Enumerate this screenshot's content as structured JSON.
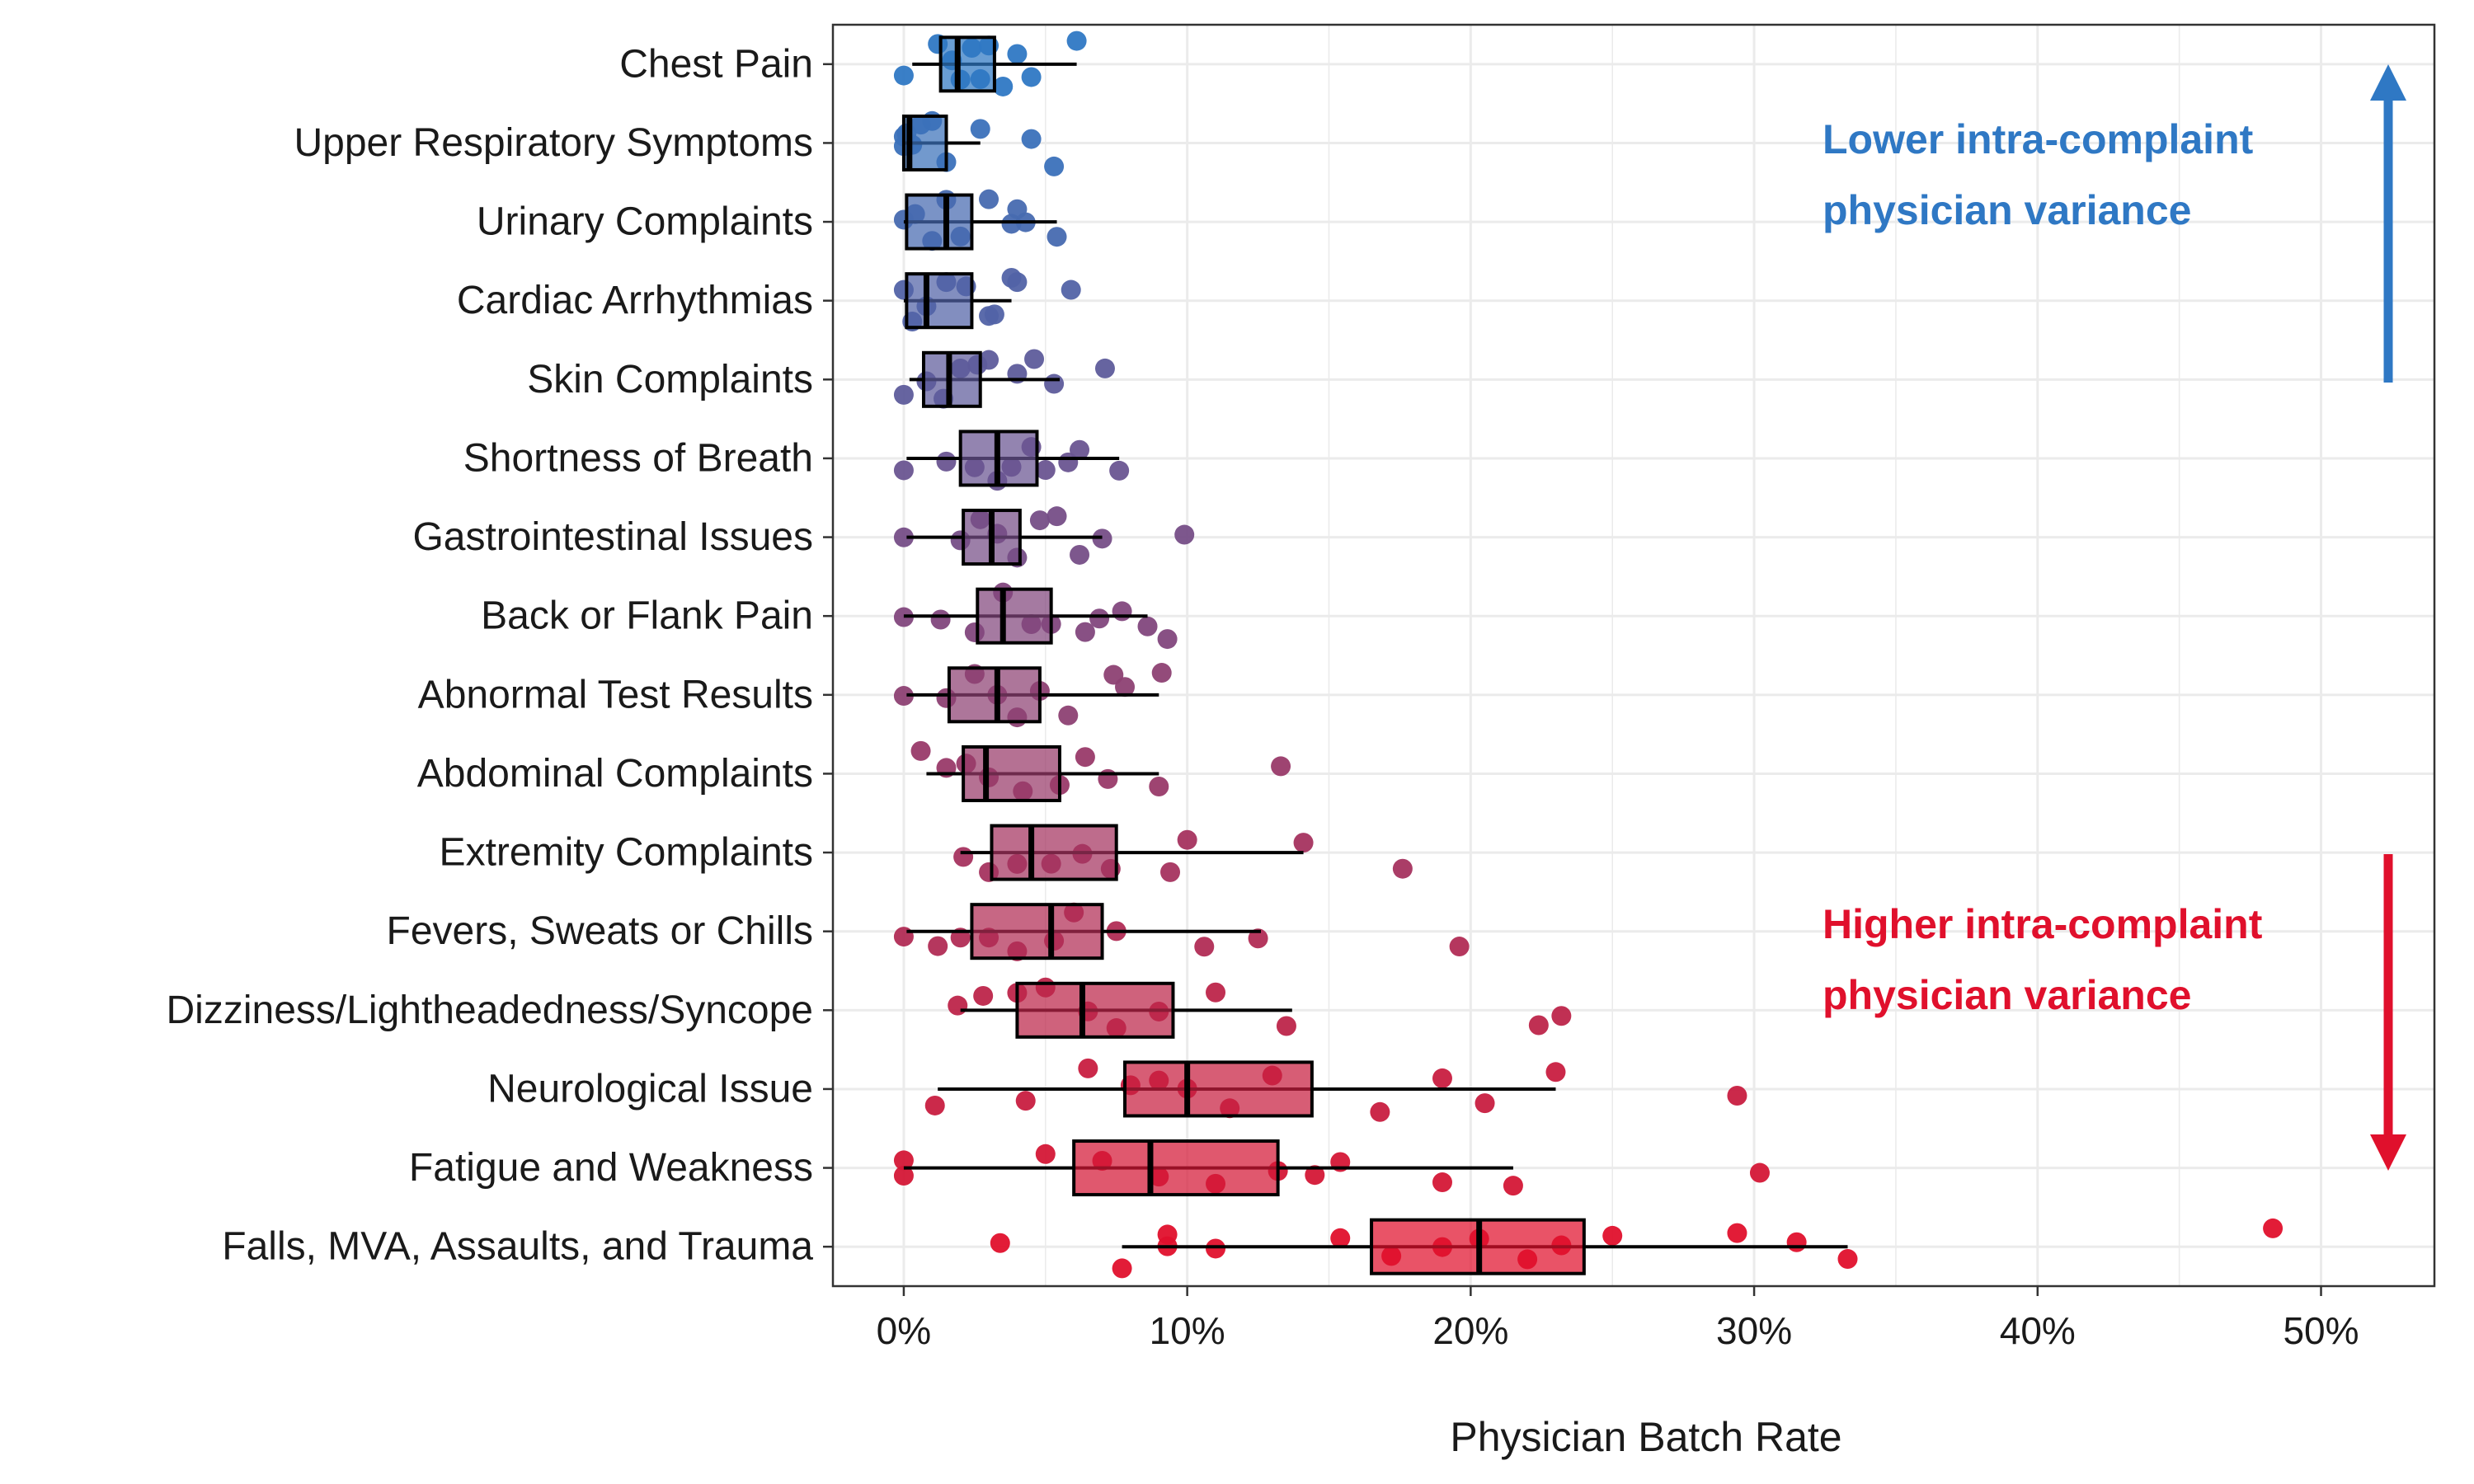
{
  "chart_data": {
    "type": "boxplot",
    "xlabel": "Physician Batch Rate",
    "ylabel": "",
    "xlim": [
      -0.025,
      0.54
    ],
    "x_ticks": [
      0,
      0.1,
      0.2,
      0.3,
      0.4,
      0.5
    ],
    "x_tick_labels": [
      "0%",
      "10%",
      "20%",
      "30%",
      "40%",
      "50%"
    ],
    "grid": true,
    "colors": {
      "low": "#2f78c4",
      "high": "#e0102c"
    },
    "categories": [
      {
        "name": "Chest Pain",
        "min": 0.003,
        "q1": 0.013,
        "median": 0.019,
        "q3": 0.032,
        "max": 0.061,
        "points": [
          0.0,
          0.012,
          0.017,
          0.02,
          0.024,
          0.027,
          0.03,
          0.035,
          0.04,
          0.045,
          0.061
        ]
      },
      {
        "name": "Upper Respiratory Symptoms",
        "min": 0.0,
        "q1": 0.0,
        "median": 0.002,
        "q3": 0.015,
        "max": 0.027,
        "points": [
          0.0,
          0.0,
          0.001,
          0.003,
          0.006,
          0.01,
          0.015,
          0.027,
          0.045,
          0.053
        ]
      },
      {
        "name": "Urinary Complaints",
        "min": 0.0,
        "q1": 0.001,
        "median": 0.015,
        "q3": 0.024,
        "max": 0.054,
        "points": [
          0.0,
          0.004,
          0.01,
          0.015,
          0.02,
          0.03,
          0.038,
          0.04,
          0.043,
          0.054
        ]
      },
      {
        "name": "Cardiac Arrhythmias",
        "min": 0.0,
        "q1": 0.001,
        "median": 0.008,
        "q3": 0.024,
        "max": 0.038,
        "points": [
          0.0,
          0.003,
          0.008,
          0.015,
          0.022,
          0.03,
          0.032,
          0.038,
          0.04,
          0.059
        ]
      },
      {
        "name": "Skin Complaints",
        "min": 0.002,
        "q1": 0.007,
        "median": 0.016,
        "q3": 0.027,
        "max": 0.055,
        "points": [
          0.0,
          0.008,
          0.014,
          0.02,
          0.026,
          0.03,
          0.04,
          0.046,
          0.053,
          0.071
        ]
      },
      {
        "name": "Shortness of Breath",
        "min": 0.001,
        "q1": 0.02,
        "median": 0.033,
        "q3": 0.047,
        "max": 0.076,
        "points": [
          0.0,
          0.015,
          0.025,
          0.033,
          0.038,
          0.045,
          0.05,
          0.058,
          0.062,
          0.076
        ]
      },
      {
        "name": "Gastrointestinal Issues",
        "min": 0.001,
        "q1": 0.021,
        "median": 0.031,
        "q3": 0.041,
        "max": 0.07,
        "points": [
          0.0,
          0.02,
          0.027,
          0.033,
          0.04,
          0.048,
          0.054,
          0.062,
          0.07,
          0.099
        ]
      },
      {
        "name": "Back or Flank Pain",
        "min": 0.0,
        "q1": 0.026,
        "median": 0.035,
        "q3": 0.052,
        "max": 0.086,
        "points": [
          0.0,
          0.013,
          0.025,
          0.035,
          0.045,
          0.052,
          0.064,
          0.069,
          0.077,
          0.086,
          0.093
        ]
      },
      {
        "name": "Abnormal Test Results",
        "min": 0.001,
        "q1": 0.016,
        "median": 0.033,
        "q3": 0.048,
        "max": 0.09,
        "points": [
          0.0,
          0.015,
          0.025,
          0.033,
          0.04,
          0.048,
          0.058,
          0.074,
          0.078,
          0.091
        ]
      },
      {
        "name": "Abdominal Complaints",
        "min": 0.008,
        "q1": 0.021,
        "median": 0.029,
        "q3": 0.055,
        "max": 0.09,
        "points": [
          0.006,
          0.015,
          0.022,
          0.03,
          0.042,
          0.055,
          0.064,
          0.072,
          0.09,
          0.133
        ]
      },
      {
        "name": "Extremity Complaints",
        "min": 0.02,
        "q1": 0.031,
        "median": 0.045,
        "q3": 0.075,
        "max": 0.141,
        "points": [
          0.021,
          0.03,
          0.04,
          0.052,
          0.063,
          0.073,
          0.094,
          0.1,
          0.141,
          0.176
        ]
      },
      {
        "name": "Fevers, Sweats or Chills",
        "min": 0.001,
        "q1": 0.024,
        "median": 0.052,
        "q3": 0.07,
        "max": 0.126,
        "points": [
          0.0,
          0.012,
          0.02,
          0.03,
          0.04,
          0.053,
          0.06,
          0.075,
          0.106,
          0.125,
          0.196
        ]
      },
      {
        "name": "Dizziness/Lightheadedness/Syncope",
        "min": 0.02,
        "q1": 0.04,
        "median": 0.063,
        "q3": 0.095,
        "max": 0.137,
        "points": [
          0.019,
          0.028,
          0.04,
          0.05,
          0.065,
          0.075,
          0.09,
          0.11,
          0.135,
          0.224,
          0.232
        ]
      },
      {
        "name": "Neurological Issue",
        "min": 0.012,
        "q1": 0.078,
        "median": 0.1,
        "q3": 0.144,
        "max": 0.23,
        "points": [
          0.011,
          0.043,
          0.065,
          0.08,
          0.09,
          0.1,
          0.115,
          0.13,
          0.168,
          0.19,
          0.205,
          0.23,
          0.294
        ]
      },
      {
        "name": "Fatigue and Weakness",
        "min": 0.0,
        "q1": 0.06,
        "median": 0.087,
        "q3": 0.132,
        "max": 0.215,
        "points": [
          0.0,
          0.0,
          0.05,
          0.07,
          0.09,
          0.11,
          0.132,
          0.145,
          0.154,
          0.19,
          0.215,
          0.302
        ]
      },
      {
        "name": "Falls, MVA, Assaults, and Trauma",
        "min": 0.077,
        "q1": 0.165,
        "median": 0.203,
        "q3": 0.24,
        "max": 0.333,
        "points": [
          0.034,
          0.077,
          0.093,
          0.093,
          0.11,
          0.154,
          0.172,
          0.19,
          0.203,
          0.22,
          0.232,
          0.25,
          0.294,
          0.315,
          0.333,
          0.483
        ]
      }
    ],
    "annotations": [
      {
        "lines": [
          "Lower intra-complaint",
          "physician variance"
        ],
        "color": "#2f78c4",
        "arrow": "up"
      },
      {
        "lines": [
          "Higher intra-complaint",
          "physician variance"
        ],
        "color": "#e0102c",
        "arrow": "down"
      }
    ]
  }
}
